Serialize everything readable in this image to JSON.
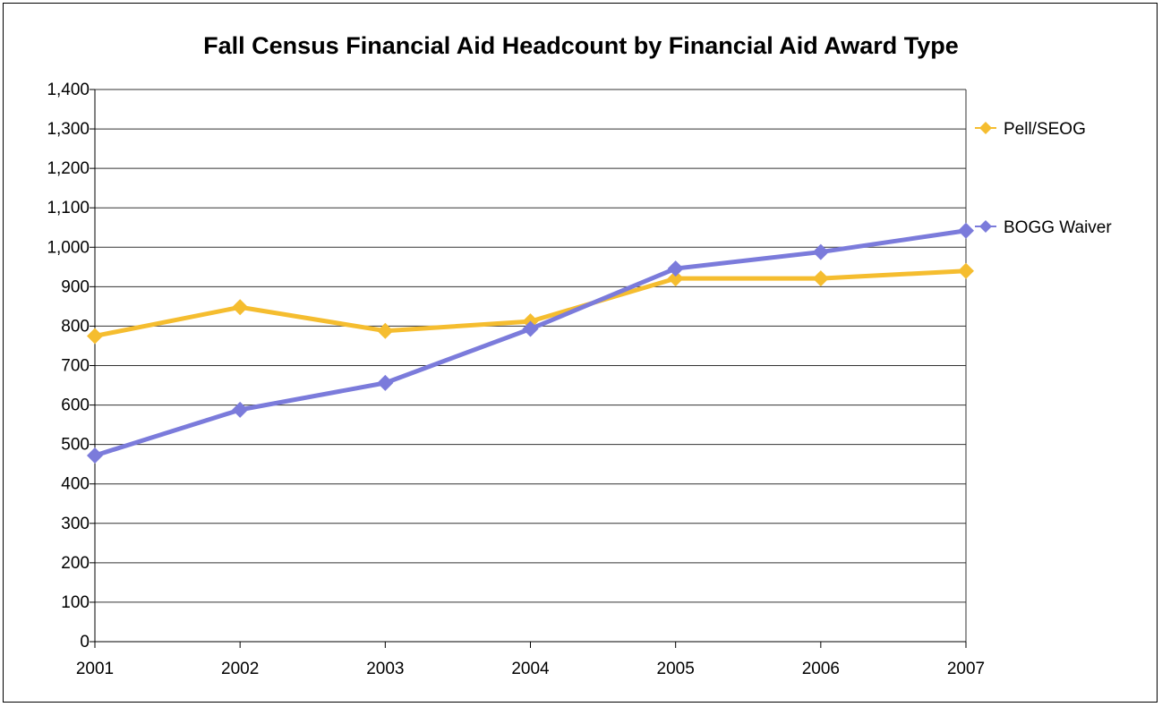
{
  "chart_data": {
    "type": "line",
    "title": "Fall Census Financial Aid Headcount by Financial Aid Award Type",
    "xlabel": "",
    "ylabel": "",
    "categories": [
      "2001",
      "2002",
      "2003",
      "2004",
      "2005",
      "2006",
      "2007"
    ],
    "ylim": [
      0,
      1400
    ],
    "yticks": [
      0,
      100,
      200,
      300,
      400,
      500,
      600,
      700,
      800,
      900,
      1000,
      1100,
      1200,
      1300,
      1400
    ],
    "ytick_labels": [
      "0",
      "100",
      "200",
      "300",
      "400",
      "500",
      "600",
      "700",
      "800",
      "900",
      "1,000",
      "1,100",
      "1,200",
      "1,300",
      "1,400"
    ],
    "grid": true,
    "legend_position": "right",
    "series": [
      {
        "name": "Pell/SEOG",
        "color": "#F5BD2F",
        "marker": "diamond",
        "values": [
          775,
          848,
          788,
          812,
          921,
          921,
          940
        ]
      },
      {
        "name": "BOGG Waiver",
        "color": "#7B7BDB",
        "marker": "diamond",
        "values": [
          472,
          588,
          656,
          793,
          946,
          988,
          1042
        ]
      }
    ]
  }
}
